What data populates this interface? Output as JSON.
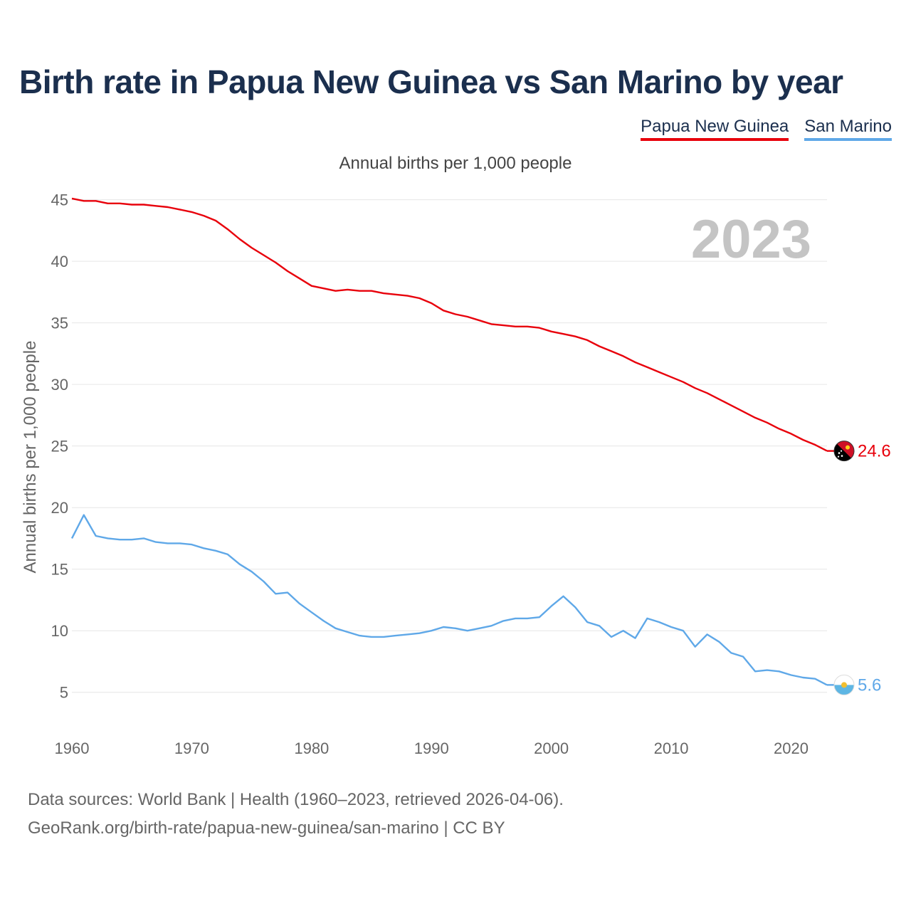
{
  "title": "Birth rate in Papua New Guinea vs San Marino by year",
  "legend": [
    {
      "label": "Papua New Guinea",
      "color": "#e8000b"
    },
    {
      "label": "San Marino",
      "color": "#5fa8e8"
    }
  ],
  "subtitle": "Annual births per 1,000 people",
  "year_label": "2023",
  "source_line1": "Data sources: World Bank | Health (1960–2023, retrieved 2026-04-06).",
  "source_line2": "GeoRank.org/birth-rate/papua-new-guinea/san-marino | CC BY",
  "chart_data": {
    "type": "line",
    "title": "Birth rate in Papua New Guinea vs San Marino by year",
    "ylabel": "Annual births per 1,000 people",
    "xlabel": "",
    "xlim": [
      1960,
      2023
    ],
    "ylim": [
      2.5,
      47
    ],
    "x_ticks": [
      1960,
      1970,
      1980,
      1990,
      2000,
      2010,
      2020
    ],
    "y_ticks": [
      5,
      10,
      15,
      20,
      25,
      30,
      35,
      40,
      45
    ],
    "grid": true,
    "x": [
      1960,
      1961,
      1962,
      1963,
      1964,
      1965,
      1966,
      1967,
      1968,
      1969,
      1970,
      1971,
      1972,
      1973,
      1974,
      1975,
      1976,
      1977,
      1978,
      1979,
      1980,
      1981,
      1982,
      1983,
      1984,
      1985,
      1986,
      1987,
      1988,
      1989,
      1990,
      1991,
      1992,
      1993,
      1994,
      1995,
      1996,
      1997,
      1998,
      1999,
      2000,
      2001,
      2002,
      2003,
      2004,
      2005,
      2006,
      2007,
      2008,
      2009,
      2010,
      2011,
      2012,
      2013,
      2014,
      2015,
      2016,
      2017,
      2018,
      2019,
      2020,
      2021,
      2022,
      2023
    ],
    "series": [
      {
        "name": "Papua New Guinea",
        "color": "#e8000b",
        "end_label": "24.6",
        "values": [
          45.1,
          44.9,
          44.9,
          44.7,
          44.7,
          44.6,
          44.6,
          44.5,
          44.4,
          44.2,
          44.0,
          43.7,
          43.3,
          42.6,
          41.8,
          41.1,
          40.5,
          39.9,
          39.2,
          38.6,
          38.0,
          37.8,
          37.6,
          37.7,
          37.6,
          37.6,
          37.4,
          37.3,
          37.2,
          37.0,
          36.6,
          36.0,
          35.7,
          35.5,
          35.2,
          34.9,
          34.8,
          34.7,
          34.7,
          34.6,
          34.3,
          34.1,
          33.9,
          33.6,
          33.1,
          32.7,
          32.3,
          31.8,
          31.4,
          31.0,
          30.6,
          30.2,
          29.7,
          29.3,
          28.8,
          28.3,
          27.8,
          27.3,
          26.9,
          26.4,
          26.0,
          25.5,
          25.1,
          24.6
        ]
      },
      {
        "name": "San Marino",
        "color": "#5fa8e8",
        "end_label": "5.6",
        "values": [
          17.5,
          19.4,
          17.7,
          17.5,
          17.4,
          17.4,
          17.5,
          17.2,
          17.1,
          17.1,
          17.0,
          16.7,
          16.5,
          16.2,
          15.4,
          14.8,
          14.0,
          13.0,
          13.1,
          12.2,
          11.5,
          10.8,
          10.2,
          9.9,
          9.6,
          9.5,
          9.5,
          9.6,
          9.7,
          9.8,
          10.0,
          10.3,
          10.2,
          10.0,
          10.2,
          10.4,
          10.8,
          11.0,
          11.0,
          11.1,
          12.0,
          12.8,
          11.9,
          10.7,
          10.4,
          9.5,
          10.0,
          9.4,
          11.0,
          10.7,
          10.3,
          10.0,
          8.7,
          9.7,
          9.1,
          8.2,
          7.9,
          6.7,
          6.8,
          6.7,
          6.4,
          6.2,
          6.1,
          5.6
        ]
      }
    ]
  }
}
